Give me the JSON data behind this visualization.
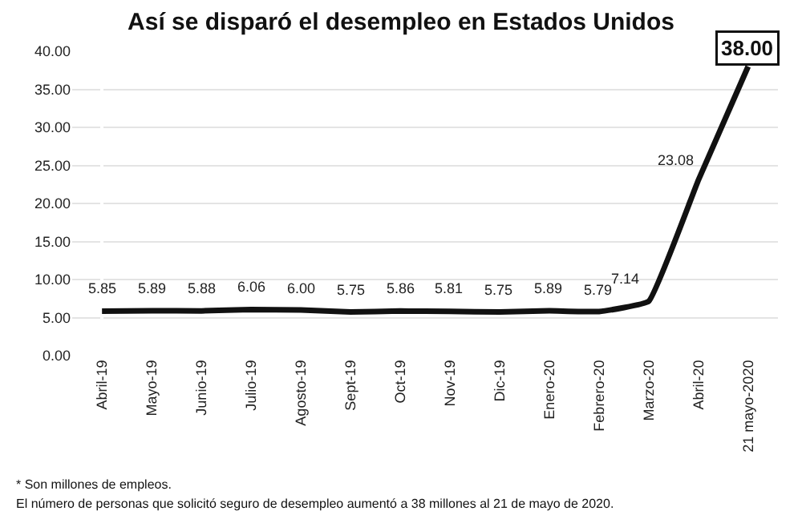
{
  "chart_data": {
    "type": "line",
    "title": "Así se disparó el desempleo en Estados Unidos",
    "categories": [
      "Abril-19",
      "Mayo-19",
      "Junio-19",
      "Julio-19",
      "Agosto-19",
      "Sept-19",
      "Oct-19",
      "Nov-19",
      "Dic-19",
      "Enero-20",
      "Febrero-20",
      "Marzo-20",
      "Abril-20",
      "21 mayo-2020"
    ],
    "values": [
      5.85,
      5.89,
      5.88,
      6.06,
      6.0,
      5.75,
      5.86,
      5.81,
      5.75,
      5.89,
      5.79,
      7.14,
      23.08,
      38.0
    ],
    "value_labels": [
      "5.85",
      "5.89",
      "5.88",
      "6.06",
      "6.00",
      "5.75",
      "5.86",
      "5.81",
      "5.75",
      "5.89",
      "5.79",
      "7.14",
      "23.08",
      "38.00"
    ],
    "color": "#111111",
    "ylim": [
      0,
      40
    ],
    "yticks": [
      {
        "value": 0,
        "label": "0.00"
      },
      {
        "value": 5,
        "label": "5.00"
      },
      {
        "value": 10,
        "label": "10.00"
      },
      {
        "value": 15,
        "label": "15.00"
      },
      {
        "value": 20,
        "label": "20.00"
      },
      {
        "value": 25,
        "label": "25.00"
      },
      {
        "value": 30,
        "label": "30.00"
      },
      {
        "value": 35,
        "label": "35.00"
      },
      {
        "value": 40,
        "label": "40.00"
      }
    ],
    "grid": "y",
    "legend": false,
    "marker": "none",
    "line_style": "solid",
    "annotations": [
      "* Son millones de empleos.",
      "El número de personas que solicitó seguro de desempleo aumentó a 38 millones al 21 de mayo de 2020."
    ]
  }
}
